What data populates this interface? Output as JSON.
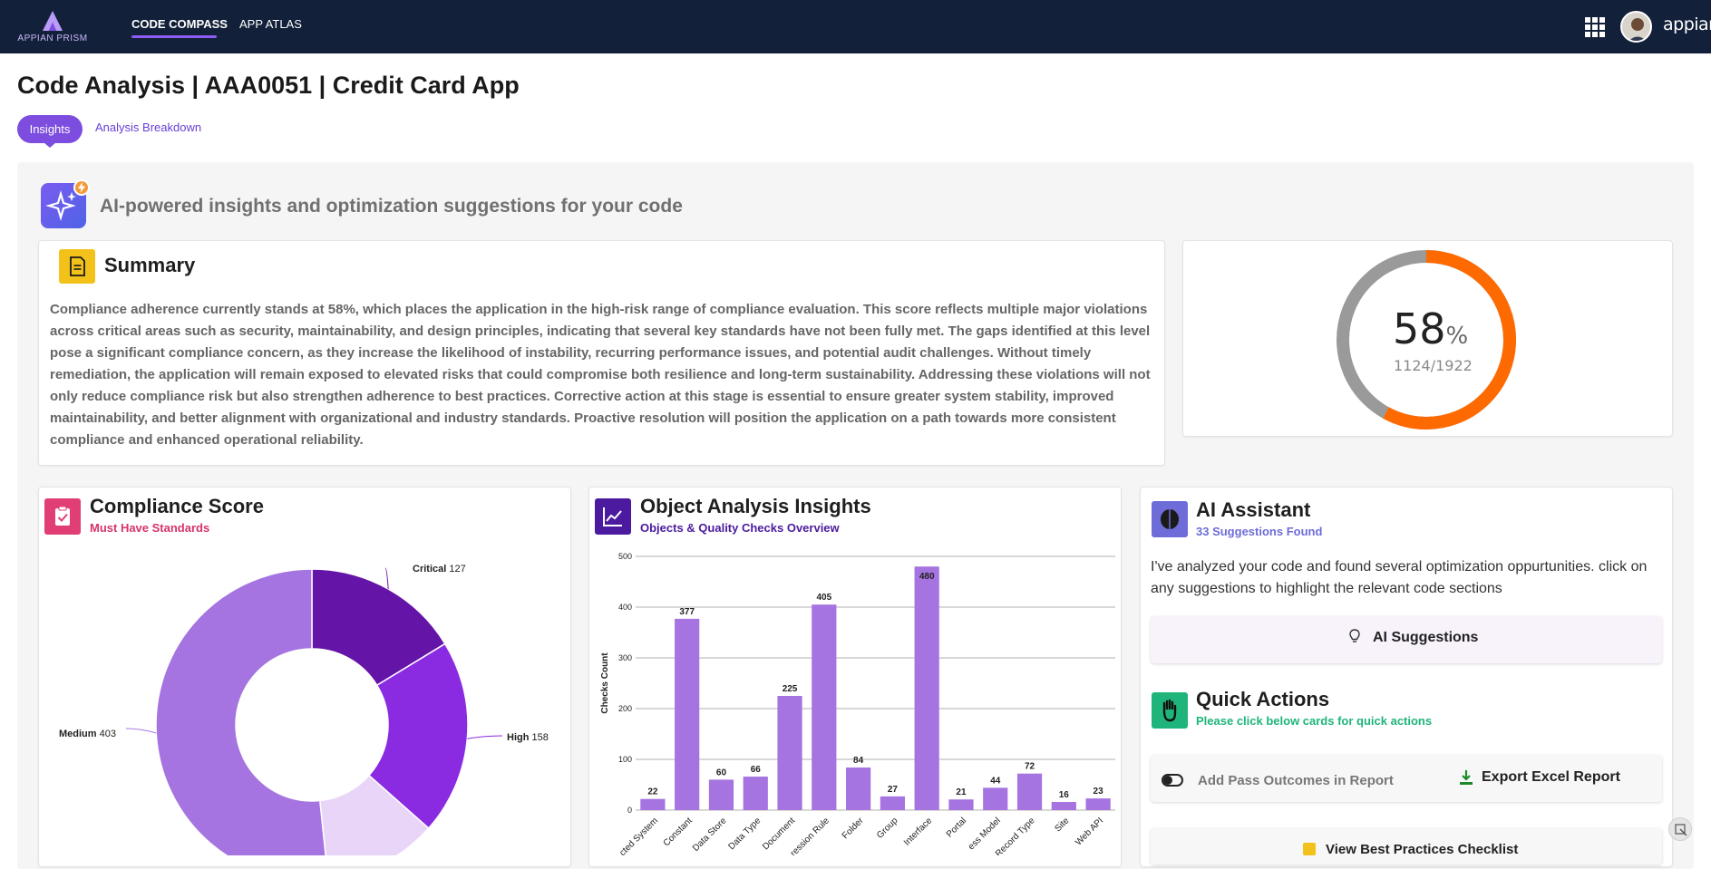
{
  "header": {
    "logo_text": "APPIAN PRISM",
    "nav": [
      {
        "label": "CODE COMPASS"
      },
      {
        "label": "APP ATLAS"
      }
    ],
    "brand": "appian",
    "icons": [
      "apps-grid-icon",
      "user-avatar",
      "appian-logo"
    ]
  },
  "page": {
    "title": "Code Analysis | AAA0051 | Credit Card App",
    "tabs": [
      {
        "label": "Insights",
        "active": true
      },
      {
        "label": "Analysis Breakdown",
        "active": false
      }
    ],
    "ai_heading": "AI-powered insights and optimization suggestions for your code"
  },
  "summary": {
    "title": "Summary",
    "text": "Compliance adherence currently stands at 58%, which places the application in the high-risk range of compliance evaluation. This score reflects multiple major violations across critical areas such as security, maintainability, and design principles, indicating that several key standards have not been fully met. The gaps identified at this level pose a significant compliance concern, as they increase the likelihood of instability, recurring performance issues, and potential audit challenges. Without timely remediation, the application will remain exposed to elevated risks that could compromise both resilience and long-term sustainability. Addressing these violations will not only reduce compliance risk but also strengthen adherence to best practices. Corrective action at this stage is essential to ensure greater system stability, improved maintainability, and better alignment with organizational and industry standards. Proactive resolution will position the application on a path towards more consistent compliance and enhanced operational reliability."
  },
  "score_ring": {
    "percent": "58",
    "percent_sign": "%",
    "fraction": "1124/1922",
    "value": 0.58,
    "colors": {
      "filled": "#ff6a00",
      "remaining": "#9a9a9a"
    }
  },
  "compliance": {
    "title": "Compliance Score",
    "subtitle": "Must Have Standards",
    "slices": [
      {
        "label": "Critical",
        "value": 127,
        "color": "#6514a8"
      },
      {
        "label": "High",
        "value": 158,
        "color": "#8a2be2"
      },
      {
        "label": "",
        "value": 92,
        "color": "#e8d5f8"
      },
      {
        "label": "Medium",
        "value": 403,
        "color": "#a574e0"
      }
    ]
  },
  "objects": {
    "title": "Object Analysis Insights",
    "subtitle": "Objects & Quality Checks Overview"
  },
  "chart_data": {
    "type": "bar",
    "categories": [
      "Connected System",
      "Constant",
      "Data Store",
      "Data Type",
      "Document",
      "Expression Rule",
      "Folder",
      "Group",
      "Interface",
      "Portal",
      "Process Model",
      "Record Type",
      "Site",
      "Web API"
    ],
    "category_labels": [
      "cted System",
      "Constant",
      "Data Store",
      "Data Type",
      "Document",
      "ression Rule",
      "Folder",
      "Group",
      "Interface",
      "Portal",
      "ess Model",
      "Record Type",
      "Site",
      "Web API"
    ],
    "values": [
      22,
      377,
      60,
      66,
      225,
      405,
      84,
      27,
      480,
      21,
      44,
      72,
      16,
      23
    ],
    "ylabel": "Checks Count",
    "ylim": [
      0,
      500
    ],
    "yticks": [
      "0",
      "100",
      "200",
      "300",
      "400",
      "500"
    ],
    "bar_color": "#a574e0"
  },
  "assistant": {
    "title": "AI Assistant",
    "subtitle": "33 Suggestions Found",
    "text": "I've analyzed your code and found several optimization oppurtunities. click on any suggestions to highlight the relevant code sections",
    "suggestions_label": "AI Suggestions"
  },
  "quick_actions": {
    "title": "Quick Actions",
    "subtitle": "Please click below cards for quick actions",
    "pass_label": "Add Pass Outcomes in Report",
    "export_label": "Export Excel Report",
    "checklist_label": "View Best Practices Checklist"
  }
}
